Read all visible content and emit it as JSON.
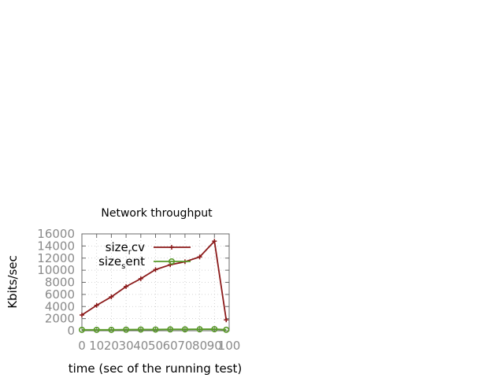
{
  "chart_data": {
    "type": "line",
    "title": "Network throughput",
    "xlabel": "time (sec of the running test)",
    "ylabel": "Kbits/sec",
    "xlim": [
      0,
      100
    ],
    "ylim": [
      0,
      16000
    ],
    "xticks": [
      "0",
      "10",
      "20",
      "30",
      "40",
      "50",
      "60",
      "70",
      "80",
      "90",
      "100"
    ],
    "yticks": [
      "0",
      "2000",
      "4000",
      "6000",
      "8000",
      "10000",
      "12000",
      "14000",
      "16000"
    ],
    "grid": true,
    "legend_position": "top-left inside",
    "series": [
      {
        "name_main": "size",
        "name_sub": "r",
        "name_tail": "cv",
        "color": "#8b1a1a",
        "marker": "plus",
        "x": [
          0,
          10,
          20,
          30,
          40,
          50,
          60,
          70,
          80,
          90,
          98
        ],
        "values": [
          2600,
          4200,
          5600,
          7300,
          8600,
          10100,
          10900,
          11400,
          12200,
          14800,
          1800
        ]
      },
      {
        "name_main": "size",
        "name_sub": "s",
        "name_tail": "ent",
        "color": "#5a9a2a",
        "marker": "circle",
        "x": [
          0,
          10,
          20,
          30,
          40,
          50,
          60,
          70,
          80,
          90,
          98
        ],
        "values": [
          150,
          150,
          150,
          180,
          200,
          200,
          220,
          230,
          240,
          260,
          160
        ]
      }
    ]
  }
}
